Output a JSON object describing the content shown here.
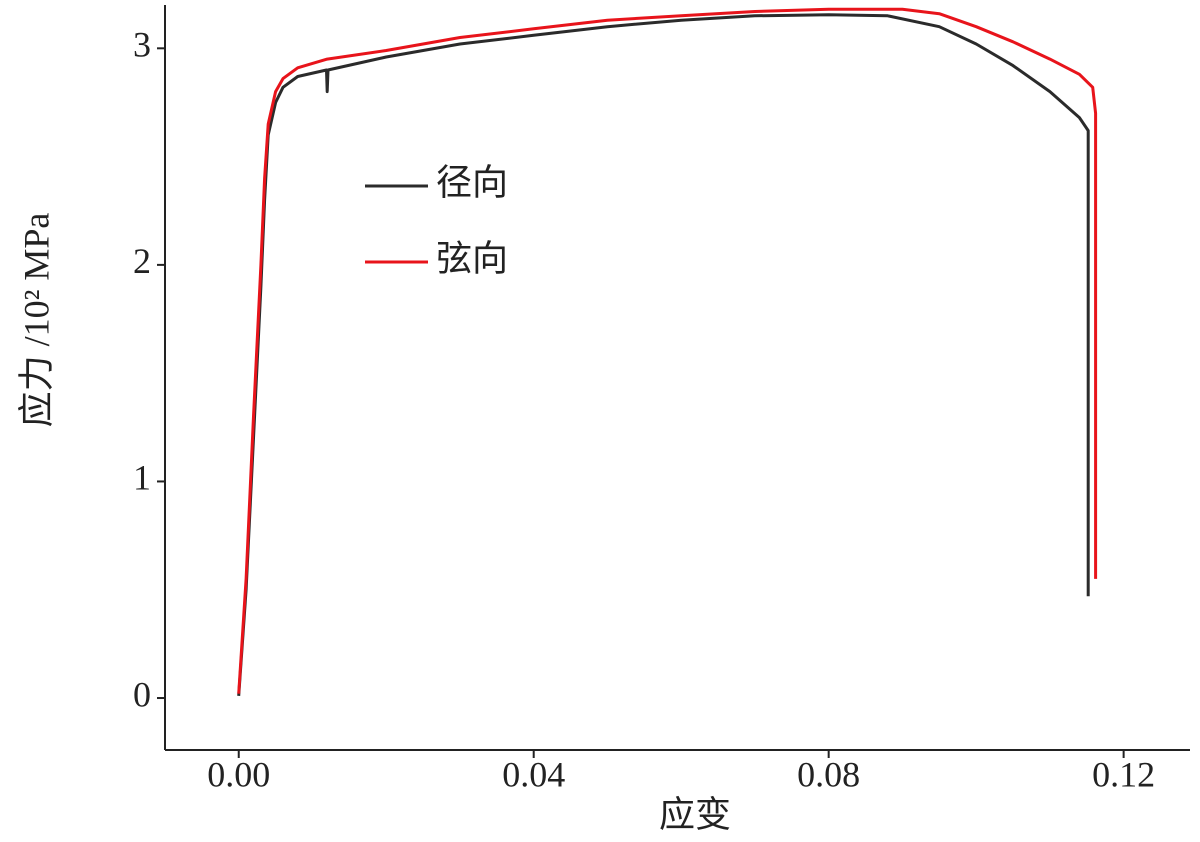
{
  "chart_data": {
    "type": "line",
    "x_label": "应变",
    "y_label": "应力 /10² MPa",
    "xlim": [
      -0.01,
      0.129
    ],
    "ylim": [
      -0.24,
      3.2
    ],
    "xticks": [
      {
        "value": 0,
        "label": "0.00"
      },
      0.04,
      0.08,
      0.12
    ],
    "yticks": [
      0,
      1,
      2,
      3
    ],
    "legend": "upper left",
    "grid": false,
    "series": [
      {
        "name": "径向",
        "color": "#2b2b2b",
        "x": [
          0,
          0.001,
          0.002,
          0.003,
          0.0035,
          0.004,
          0.005,
          0.006,
          0.008,
          0.0119,
          0.012,
          0.0121,
          0.02,
          0.03,
          0.04,
          0.05,
          0.06,
          0.07,
          0.08,
          0.088,
          0.095,
          0.1,
          0.105,
          0.11,
          0.114,
          0.1152,
          0.1152
        ],
        "values": [
          0.01,
          0.5,
          1.2,
          1.9,
          2.3,
          2.6,
          2.75,
          2.82,
          2.87,
          2.9,
          2.8,
          2.9,
          2.96,
          3.02,
          3.06,
          3.1,
          3.13,
          3.15,
          3.155,
          3.15,
          3.1,
          3.02,
          2.92,
          2.8,
          2.68,
          2.62,
          0.47
        ]
      },
      {
        "name": "弦向",
        "color": "#e8141b",
        "x": [
          0,
          0.001,
          0.002,
          0.003,
          0.0035,
          0.004,
          0.005,
          0.006,
          0.008,
          0.012,
          0.02,
          0.03,
          0.04,
          0.05,
          0.06,
          0.07,
          0.08,
          0.09,
          0.095,
          0.1,
          0.105,
          0.11,
          0.114,
          0.1158,
          0.1162,
          0.1162
        ],
        "values": [
          0.02,
          0.55,
          1.3,
          2.0,
          2.4,
          2.65,
          2.8,
          2.86,
          2.91,
          2.95,
          2.99,
          3.05,
          3.09,
          3.13,
          3.15,
          3.17,
          3.18,
          3.18,
          3.16,
          3.1,
          3.03,
          2.95,
          2.88,
          2.82,
          2.7,
          0.55
        ]
      }
    ]
  }
}
